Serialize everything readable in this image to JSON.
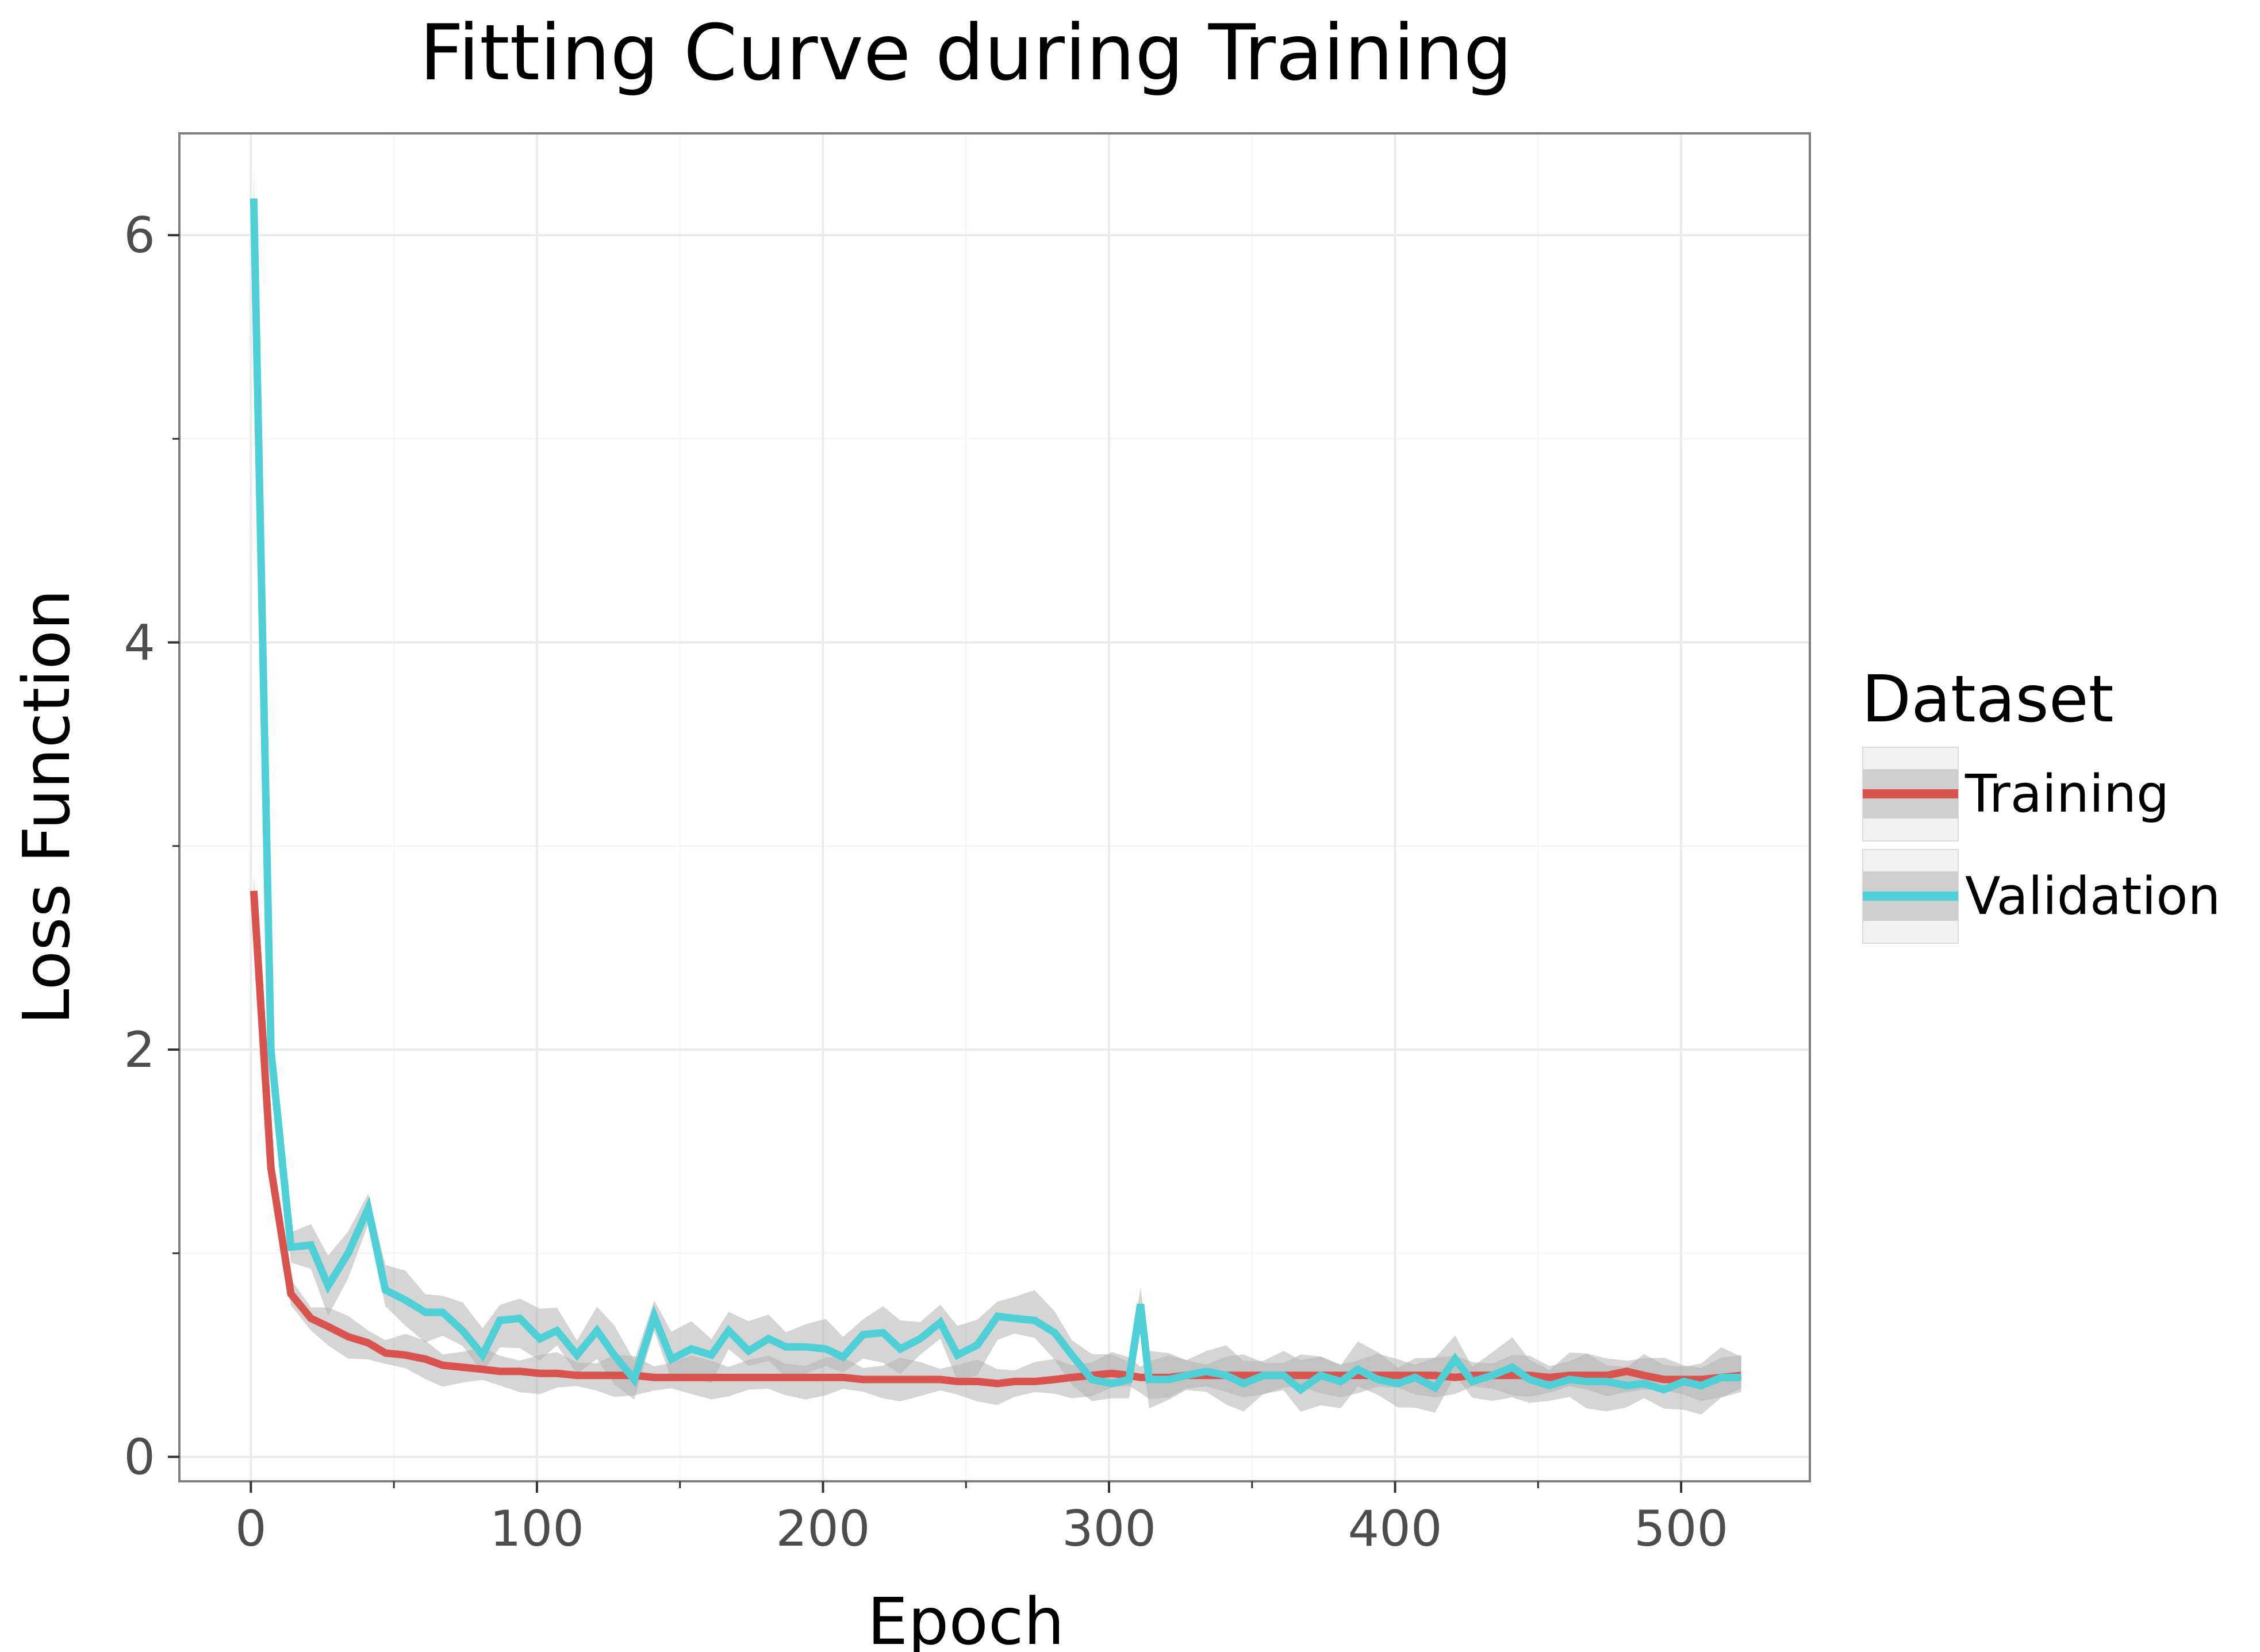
{
  "chart_data": {
    "type": "line",
    "title": "Fitting Curve during Training",
    "xlabel": "Epoch",
    "ylabel": "Loss Function",
    "xlim": [
      -25,
      545
    ],
    "ylim": [
      -0.12,
      6.5
    ],
    "x_ticks": [
      0,
      100,
      200,
      300,
      400,
      500
    ],
    "x_tick_labels": [
      "0",
      "100",
      "200",
      "300",
      "400",
      "500"
    ],
    "y_ticks": [
      0,
      2,
      4,
      6
    ],
    "y_tick_labels": [
      "0",
      "2",
      "4",
      "6"
    ],
    "y_minor_ticks": [
      1,
      3,
      5
    ],
    "x_minor_ticks": [
      50,
      150,
      250,
      350,
      450
    ],
    "grid": true,
    "legend": {
      "title": "Dataset",
      "position": "right"
    },
    "colors": {
      "training": "#d9534f",
      "validation": "#4fd0d6",
      "band": "#b3b3b3",
      "panel_border": "#7f7f7f",
      "grid": "#ebebeb"
    },
    "x": [
      1,
      7,
      14,
      21,
      27,
      34,
      41,
      47,
      54,
      61,
      67,
      74,
      81,
      87,
      94,
      101,
      107,
      114,
      121,
      127,
      134,
      141,
      147,
      154,
      161,
      167,
      174,
      181,
      187,
      194,
      201,
      207,
      214,
      221,
      227,
      234,
      241,
      247,
      254,
      261,
      267,
      274,
      281,
      287,
      294,
      301,
      307,
      311,
      314,
      321,
      327,
      334,
      341,
      347,
      354,
      361,
      367,
      374,
      381,
      387,
      394,
      401,
      407,
      414,
      421,
      427,
      434,
      441,
      447,
      454,
      461,
      467,
      474,
      481,
      487,
      494,
      501,
      507,
      514,
      521
    ],
    "series": [
      {
        "name": "Training",
        "values": [
          2.78,
          1.42,
          0.8,
          0.68,
          0.64,
          0.59,
          0.56,
          0.51,
          0.5,
          0.48,
          0.45,
          0.44,
          0.43,
          0.42,
          0.42,
          0.41,
          0.41,
          0.4,
          0.4,
          0.4,
          0.4,
          0.39,
          0.39,
          0.39,
          0.39,
          0.39,
          0.39,
          0.39,
          0.39,
          0.39,
          0.39,
          0.39,
          0.38,
          0.38,
          0.38,
          0.38,
          0.38,
          0.37,
          0.37,
          0.36,
          0.37,
          0.37,
          0.38,
          0.39,
          0.4,
          0.41,
          0.4,
          0.39,
          0.39,
          0.39,
          0.4,
          0.4,
          0.4,
          0.4,
          0.4,
          0.4,
          0.4,
          0.4,
          0.4,
          0.4,
          0.4,
          0.4,
          0.4,
          0.4,
          0.39,
          0.4,
          0.4,
          0.4,
          0.4,
          0.39,
          0.4,
          0.4,
          0.4,
          0.42,
          0.4,
          0.38,
          0.38,
          0.38,
          0.39,
          0.4
        ],
        "band_half_width": 0.08
      },
      {
        "name": "Validation",
        "values": [
          6.18,
          2.0,
          1.03,
          1.04,
          0.84,
          1.0,
          1.22,
          0.82,
          0.77,
          0.71,
          0.71,
          0.62,
          0.5,
          0.67,
          0.68,
          0.58,
          0.62,
          0.5,
          0.62,
          0.5,
          0.38,
          0.69,
          0.48,
          0.53,
          0.5,
          0.62,
          0.52,
          0.58,
          0.54,
          0.54,
          0.53,
          0.49,
          0.6,
          0.61,
          0.53,
          0.58,
          0.66,
          0.5,
          0.55,
          0.69,
          0.68,
          0.67,
          0.61,
          0.5,
          0.38,
          0.36,
          0.38,
          0.75,
          0.38,
          0.38,
          0.4,
          0.42,
          0.4,
          0.36,
          0.4,
          0.4,
          0.33,
          0.4,
          0.37,
          0.43,
          0.38,
          0.36,
          0.39,
          0.34,
          0.48,
          0.37,
          0.4,
          0.44,
          0.38,
          0.35,
          0.38,
          0.37,
          0.37,
          0.35,
          0.36,
          0.33,
          0.37,
          0.35,
          0.39,
          0.39
        ],
        "band_half_width": 0.11
      }
    ]
  }
}
